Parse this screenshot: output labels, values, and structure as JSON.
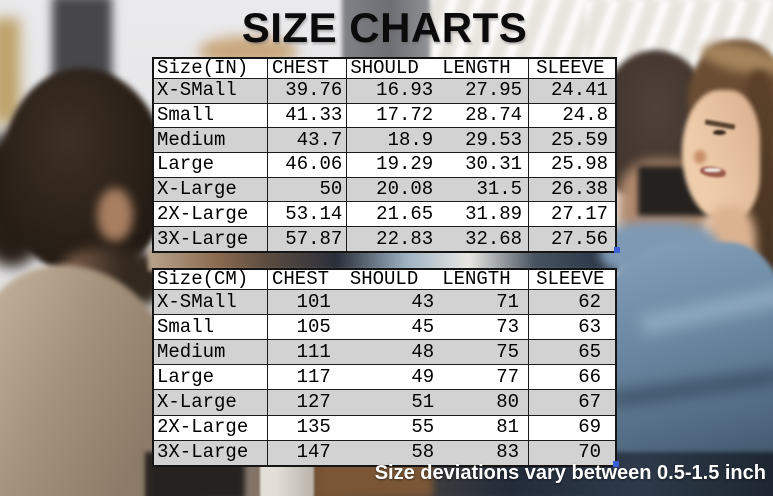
{
  "title": "SIZE CHARTS",
  "note": "Size deviations vary between 0.5-1.5 inch",
  "colors": {
    "row_stripe_gray": "#d2d2d2",
    "table_border_black": "#1b1b1b",
    "selection_handle_blue": "#3c5ed6",
    "note_text_white": "#ffffff"
  },
  "chart_data": [
    {
      "type": "table",
      "title": "SIZE CHARTS",
      "unit": "inches",
      "columns": [
        "Size(IN)",
        "CHEST",
        "SHOULD",
        "LENGTH",
        "SLEEVE"
      ],
      "rows": [
        [
          "X-SMall",
          "39.76",
          "16.93",
          "27.95",
          "24.41"
        ],
        [
          "Small",
          "41.33",
          "17.72",
          "28.74",
          "24.8"
        ],
        [
          "Medium",
          "43.7",
          "18.9",
          "29.53",
          "25.59"
        ],
        [
          "Large",
          "46.06",
          "19.29",
          "30.31",
          "25.98"
        ],
        [
          "X-Large",
          "50",
          "20.08",
          "31.5",
          "26.38"
        ],
        [
          "2X-Large",
          "53.14",
          "21.65",
          "31.89",
          "27.17"
        ],
        [
          "3X-Large",
          "57.87",
          "22.83",
          "32.68",
          "27.56"
        ]
      ]
    },
    {
      "type": "table",
      "unit": "centimeters",
      "columns": [
        "Size(CM)",
        "CHEST",
        "SHOULD",
        "LENGTH",
        "SLEEVE"
      ],
      "rows": [
        [
          "X-SMall",
          "101",
          "43",
          "71",
          "62"
        ],
        [
          "Small",
          "105",
          "45",
          "73",
          "63"
        ],
        [
          "Medium",
          "111",
          "48",
          "75",
          "65"
        ],
        [
          "Large",
          "117",
          "49",
          "77",
          "66"
        ],
        [
          "X-Large",
          "127",
          "51",
          "80",
          "67"
        ],
        [
          "2X-Large",
          "135",
          "55",
          "81",
          "69"
        ],
        [
          "3X-Large",
          "147",
          "58",
          "83",
          "70"
        ]
      ]
    }
  ]
}
